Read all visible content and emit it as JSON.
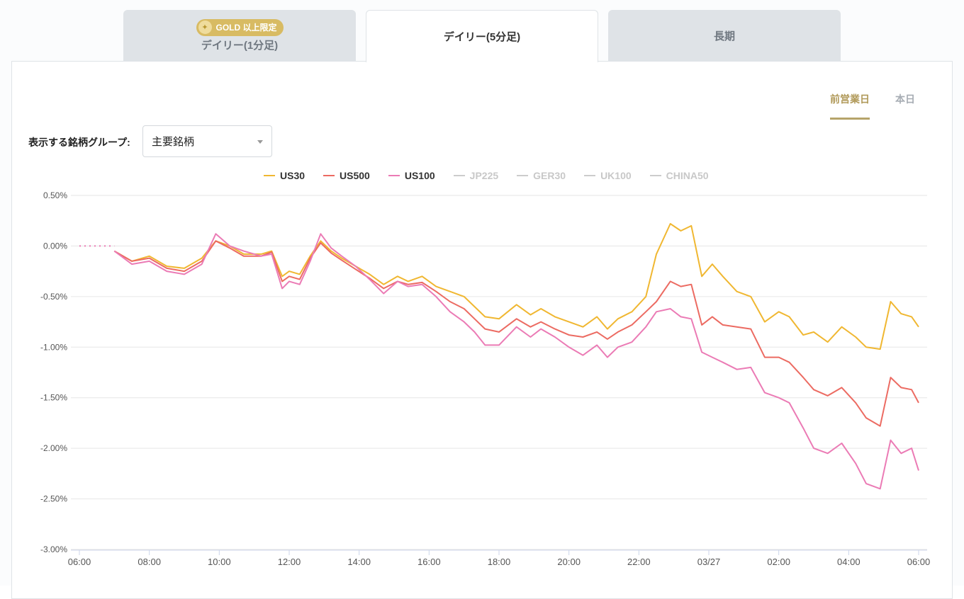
{
  "tabs": {
    "daily1": {
      "badge": "GOLD 以上限定",
      "label": "デイリー(1分足)"
    },
    "daily5": {
      "label": "デイリー(5分足)"
    },
    "long": {
      "label": "長期"
    }
  },
  "period_tabs": {
    "prev": "前営業日",
    "today": "本日"
  },
  "group_selector": {
    "label": "表示する銘柄グループ:",
    "value": "主要銘柄"
  },
  "colors": {
    "gold": "#d8bb63",
    "active_underline": "#b6a46a"
  },
  "legend": [
    {
      "name": "US30",
      "color": "#f0b731",
      "active": true
    },
    {
      "name": "US500",
      "color": "#ec6b62",
      "active": true
    },
    {
      "name": "US100",
      "color": "#eb7bb5",
      "active": true
    },
    {
      "name": "JP225",
      "color": "#cccccc",
      "active": false
    },
    {
      "name": "GER30",
      "color": "#cccccc",
      "active": false
    },
    {
      "name": "UK100",
      "color": "#cccccc",
      "active": false
    },
    {
      "name": "CHINA50",
      "color": "#cccccc",
      "active": false
    }
  ],
  "chart_data": {
    "type": "line",
    "ylim": [
      -3.0,
      0.5
    ],
    "yticks": [
      "0.50%",
      "0.00%",
      "-0.50%",
      "-1.00%",
      "-1.50%",
      "-2.00%",
      "-2.50%",
      "-3.00%"
    ],
    "ytick_values": [
      0.5,
      0.0,
      -0.5,
      -1.0,
      -1.5,
      -2.0,
      -2.5,
      -3.0
    ],
    "xlim": [
      0,
      24
    ],
    "xticks": [
      "06:00",
      "08:00",
      "10:00",
      "12:00",
      "14:00",
      "16:00",
      "18:00",
      "20:00",
      "22:00",
      "03/27",
      "02:00",
      "04:00",
      "06:00"
    ],
    "xtick_values": [
      0,
      2,
      4,
      6,
      8,
      10,
      12,
      14,
      16,
      18,
      20,
      22,
      24
    ],
    "x_unit": "hours since 06:00",
    "grid": true,
    "preopen_dotted": {
      "x": [
        0,
        1
      ],
      "y": [
        0.0,
        0.0
      ]
    },
    "series": [
      {
        "name": "US30",
        "color": "#f0b731",
        "x": [
          1.0,
          1.5,
          2.0,
          2.5,
          3.0,
          3.5,
          3.9,
          4.3,
          4.7,
          5.2,
          5.5,
          5.8,
          6.0,
          6.3,
          6.6,
          6.9,
          7.2,
          7.5,
          7.9,
          8.3,
          8.7,
          9.1,
          9.4,
          9.8,
          10.2,
          10.6,
          11.0,
          11.3,
          11.6,
          12.0,
          12.5,
          12.9,
          13.2,
          13.6,
          14.0,
          14.4,
          14.8,
          15.1,
          15.4,
          15.8,
          16.2,
          16.5,
          16.9,
          17.2,
          17.5,
          17.8,
          18.1,
          18.4,
          18.8,
          19.2,
          19.6,
          20.0,
          20.3,
          20.7,
          21.0,
          21.4,
          21.8,
          22.2,
          22.5,
          22.9,
          23.2,
          23.5,
          23.8,
          24.0
        ],
        "y": [
          -0.05,
          -0.15,
          -0.1,
          -0.2,
          -0.22,
          -0.12,
          0.05,
          0.0,
          -0.08,
          -0.08,
          -0.05,
          -0.3,
          -0.25,
          -0.28,
          -0.1,
          0.05,
          -0.05,
          -0.12,
          -0.2,
          -0.28,
          -0.38,
          -0.3,
          -0.35,
          -0.3,
          -0.4,
          -0.45,
          -0.5,
          -0.6,
          -0.7,
          -0.72,
          -0.58,
          -0.68,
          -0.62,
          -0.7,
          -0.75,
          -0.8,
          -0.7,
          -0.82,
          -0.72,
          -0.65,
          -0.5,
          -0.08,
          0.22,
          0.15,
          0.2,
          -0.3,
          -0.18,
          -0.3,
          -0.45,
          -0.5,
          -0.75,
          -0.65,
          -0.7,
          -0.88,
          -0.85,
          -0.95,
          -0.8,
          -0.9,
          -1.0,
          -1.02,
          -0.55,
          -0.67,
          -0.7,
          -0.8
        ]
      },
      {
        "name": "US500",
        "color": "#ec6b62",
        "x": [
          1.0,
          1.5,
          2.0,
          2.5,
          3.0,
          3.5,
          3.9,
          4.3,
          4.7,
          5.2,
          5.5,
          5.8,
          6.0,
          6.3,
          6.6,
          6.9,
          7.2,
          7.5,
          7.9,
          8.3,
          8.7,
          9.1,
          9.4,
          9.8,
          10.2,
          10.6,
          11.0,
          11.3,
          11.6,
          12.0,
          12.5,
          12.9,
          13.2,
          13.6,
          14.0,
          14.4,
          14.8,
          15.1,
          15.4,
          15.8,
          16.2,
          16.5,
          16.9,
          17.2,
          17.5,
          17.8,
          18.1,
          18.4,
          18.8,
          19.2,
          19.6,
          20.0,
          20.3,
          20.7,
          21.0,
          21.4,
          21.8,
          22.2,
          22.5,
          22.9,
          23.2,
          23.5,
          23.8,
          24.0
        ],
        "y": [
          -0.05,
          -0.15,
          -0.12,
          -0.22,
          -0.25,
          -0.15,
          0.05,
          -0.02,
          -0.1,
          -0.1,
          -0.06,
          -0.35,
          -0.3,
          -0.33,
          -0.12,
          0.03,
          -0.07,
          -0.14,
          -0.23,
          -0.32,
          -0.42,
          -0.35,
          -0.38,
          -0.36,
          -0.45,
          -0.55,
          -0.62,
          -0.72,
          -0.82,
          -0.85,
          -0.72,
          -0.8,
          -0.75,
          -0.82,
          -0.88,
          -0.9,
          -0.85,
          -0.92,
          -0.85,
          -0.78,
          -0.65,
          -0.55,
          -0.35,
          -0.4,
          -0.38,
          -0.78,
          -0.7,
          -0.78,
          -0.8,
          -0.82,
          -1.1,
          -1.1,
          -1.15,
          -1.3,
          -1.42,
          -1.48,
          -1.4,
          -1.55,
          -1.7,
          -1.78,
          -1.3,
          -1.4,
          -1.42,
          -1.55
        ]
      },
      {
        "name": "US100",
        "color": "#eb7bb5",
        "x": [
          1.0,
          1.5,
          2.0,
          2.5,
          3.0,
          3.5,
          3.9,
          4.3,
          4.7,
          5.2,
          5.5,
          5.8,
          6.0,
          6.3,
          6.6,
          6.9,
          7.2,
          7.5,
          7.9,
          8.3,
          8.7,
          9.1,
          9.4,
          9.8,
          10.2,
          10.6,
          11.0,
          11.3,
          11.6,
          12.0,
          12.5,
          12.9,
          13.2,
          13.6,
          14.0,
          14.4,
          14.8,
          15.1,
          15.4,
          15.8,
          16.2,
          16.5,
          16.9,
          17.2,
          17.5,
          17.8,
          18.1,
          18.4,
          18.8,
          19.2,
          19.6,
          20.0,
          20.3,
          20.7,
          21.0,
          21.4,
          21.8,
          22.2,
          22.5,
          22.9,
          23.2,
          23.5,
          23.8,
          24.0
        ],
        "y": [
          -0.05,
          -0.18,
          -0.15,
          -0.25,
          -0.28,
          -0.18,
          0.12,
          0.0,
          -0.05,
          -0.1,
          -0.08,
          -0.42,
          -0.35,
          -0.38,
          -0.15,
          0.12,
          -0.02,
          -0.1,
          -0.2,
          -0.33,
          -0.47,
          -0.35,
          -0.4,
          -0.38,
          -0.5,
          -0.65,
          -0.75,
          -0.85,
          -0.98,
          -0.98,
          -0.8,
          -0.9,
          -0.82,
          -0.9,
          -1.0,
          -1.08,
          -0.98,
          -1.1,
          -1.0,
          -0.95,
          -0.8,
          -0.65,
          -0.62,
          -0.7,
          -0.72,
          -1.05,
          -1.1,
          -1.15,
          -1.22,
          -1.2,
          -1.45,
          -1.5,
          -1.55,
          -1.8,
          -2.0,
          -2.05,
          -1.95,
          -2.15,
          -2.35,
          -2.4,
          -1.92,
          -2.05,
          -2.0,
          -2.22
        ]
      }
    ]
  }
}
